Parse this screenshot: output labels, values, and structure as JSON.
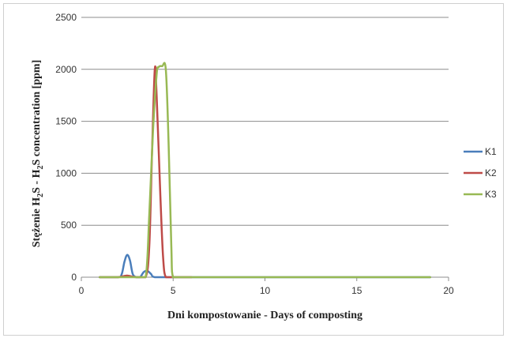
{
  "chart_data": {
    "type": "line",
    "title": "",
    "xlabel": "Dni kompostowanie - Days of composting",
    "ylabel_parts": [
      "Stężenie H",
      "2",
      "S - H",
      "2",
      "S  concentration  [ppm]"
    ],
    "xlim": [
      0,
      20
    ],
    "ylim": [
      0,
      2500
    ],
    "x_ticks": [
      0,
      5,
      10,
      15,
      20
    ],
    "y_ticks": [
      0,
      500,
      1000,
      1500,
      2000,
      2500
    ],
    "grid": "horizontal",
    "legend_position": "right",
    "series": [
      {
        "name": "K1",
        "color": "#4a7ebb",
        "points": [
          [
            1,
            0
          ],
          [
            2,
            0
          ],
          [
            2.2,
            30
          ],
          [
            2.35,
            150
          ],
          [
            2.5,
            215
          ],
          [
            2.65,
            160
          ],
          [
            2.8,
            30
          ],
          [
            3.0,
            0
          ],
          [
            3.2,
            0
          ],
          [
            3.4,
            50
          ],
          [
            3.6,
            60
          ],
          [
            3.8,
            30
          ],
          [
            4.0,
            0
          ],
          [
            5,
            0
          ],
          [
            10,
            0
          ],
          [
            15,
            0
          ],
          [
            19,
            0
          ]
        ]
      },
      {
        "name": "K2",
        "color": "#be4b48",
        "points": [
          [
            1,
            0
          ],
          [
            2,
            0
          ],
          [
            2.3,
            10
          ],
          [
            2.5,
            15
          ],
          [
            2.8,
            5
          ],
          [
            3.0,
            0
          ],
          [
            3.5,
            0
          ],
          [
            3.7,
            300
          ],
          [
            3.85,
            1200
          ],
          [
            4.0,
            2000
          ],
          [
            4.1,
            1750
          ],
          [
            4.3,
            800
          ],
          [
            4.45,
            200
          ],
          [
            4.6,
            0
          ],
          [
            5,
            0
          ],
          [
            6,
            0
          ]
        ]
      },
      {
        "name": "K3",
        "color": "#98b954",
        "points": [
          [
            1,
            0
          ],
          [
            3,
            0
          ],
          [
            3.5,
            0
          ],
          [
            3.7,
            600
          ],
          [
            3.9,
            1400
          ],
          [
            4.1,
            1950
          ],
          [
            4.2,
            2020
          ],
          [
            4.4,
            2030
          ],
          [
            4.6,
            2000
          ],
          [
            4.75,
            1300
          ],
          [
            4.9,
            300
          ],
          [
            5.0,
            0
          ],
          [
            5.5,
            0
          ],
          [
            10,
            0
          ],
          [
            15,
            0
          ],
          [
            19,
            0
          ]
        ]
      }
    ]
  }
}
